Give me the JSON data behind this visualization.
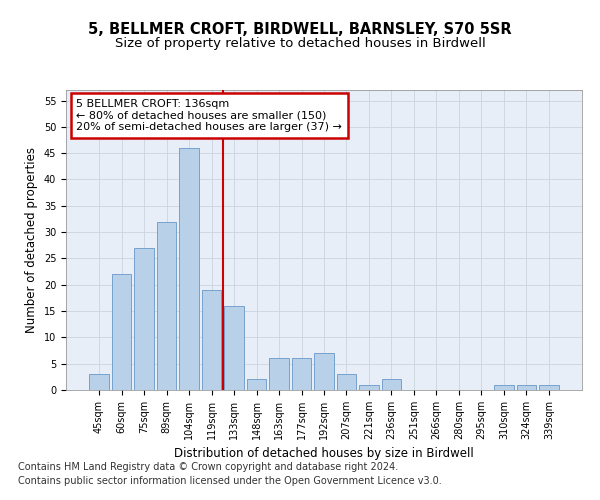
{
  "title": "5, BELLMER CROFT, BIRDWELL, BARNSLEY, S70 5SR",
  "subtitle": "Size of property relative to detached houses in Birdwell",
  "xlabel": "Distribution of detached houses by size in Birdwell",
  "ylabel": "Number of detached properties",
  "categories": [
    "45sqm",
    "60sqm",
    "75sqm",
    "89sqm",
    "104sqm",
    "119sqm",
    "133sqm",
    "148sqm",
    "163sqm",
    "177sqm",
    "192sqm",
    "207sqm",
    "221sqm",
    "236sqm",
    "251sqm",
    "266sqm",
    "280sqm",
    "295sqm",
    "310sqm",
    "324sqm",
    "339sqm"
  ],
  "values": [
    3,
    22,
    27,
    32,
    46,
    19,
    16,
    2,
    6,
    6,
    7,
    3,
    1,
    2,
    0,
    0,
    0,
    0,
    1,
    1,
    1
  ],
  "bar_color": "#b8d0e8",
  "bar_edgecolor": "#6898c8",
  "vline_x": 5.5,
  "vline_color": "#cc0000",
  "annotation_line1": "5 BELLMER CROFT: 136sqm",
  "annotation_line2": "← 80% of detached houses are smaller (150)",
  "annotation_line3": "20% of semi-detached houses are larger (37) →",
  "annotation_box_color": "#ffffff",
  "annotation_box_edgecolor": "#cc0000",
  "ylim": [
    0,
    57
  ],
  "yticks": [
    0,
    5,
    10,
    15,
    20,
    25,
    30,
    35,
    40,
    45,
    50,
    55
  ],
  "grid_color": "#c8d4e0",
  "background_color": "#e8eef8",
  "footer_line1": "Contains HM Land Registry data © Crown copyright and database right 2024.",
  "footer_line2": "Contains public sector information licensed under the Open Government Licence v3.0.",
  "title_fontsize": 10.5,
  "subtitle_fontsize": 9.5,
  "xlabel_fontsize": 8.5,
  "ylabel_fontsize": 8.5,
  "tick_fontsize": 7,
  "annotation_fontsize": 8,
  "footer_fontsize": 7
}
